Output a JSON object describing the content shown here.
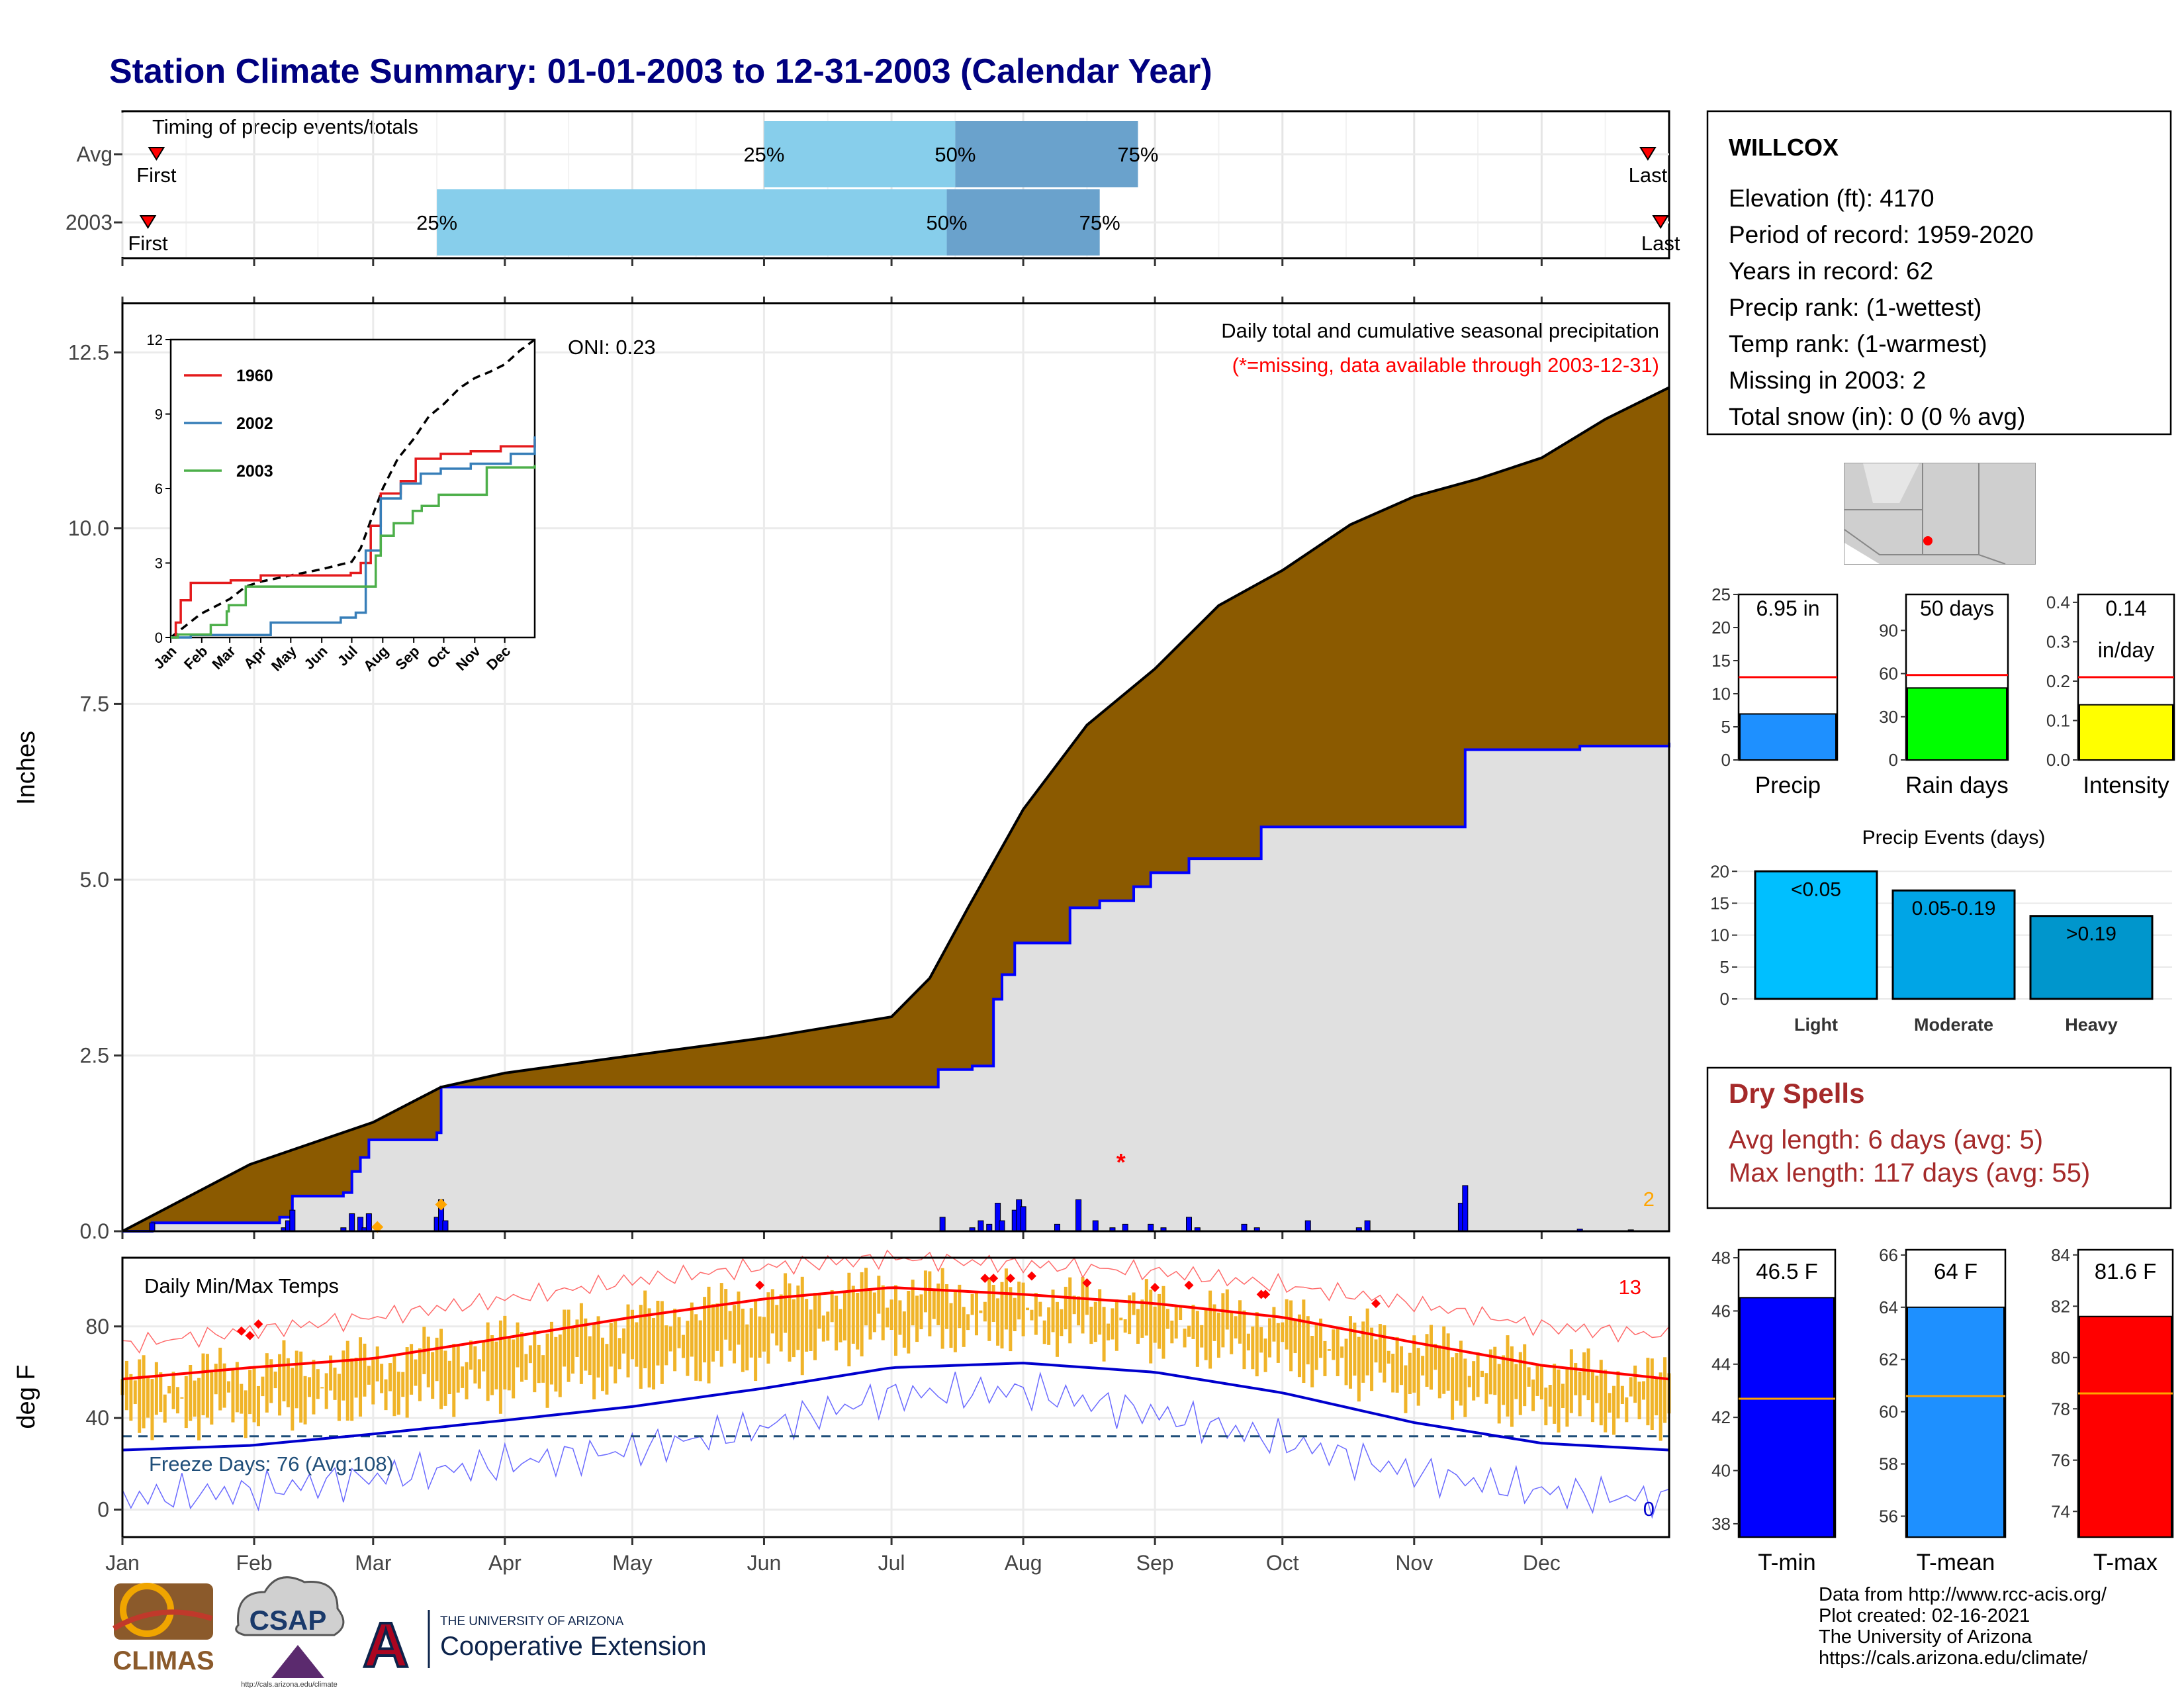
{
  "title": "Station Climate Summary: 01-01-2003 to 12-31-2003 (Calendar Year)",
  "months": [
    "Jan",
    "Feb",
    "Mar",
    "Apr",
    "May",
    "Jun",
    "Jul",
    "Aug",
    "Sep",
    "Oct",
    "Nov",
    "Dec"
  ],
  "colors": {
    "title": "#000080",
    "accent": "#8b5a00",
    "cum_line": "#0000ff",
    "q_light": "#87ceeb",
    "q_dark": "#6aa2cc",
    "temp_bar": "#f0b429",
    "tmax_mean": "#ff0000",
    "tmin_mean": "#0000cd",
    "dry": "#a52a2a",
    "gray_fill": "#e0e0e0"
  },
  "timing": {
    "title": "Timing of precip events/totals",
    "rows": [
      {
        "label": "Avg",
        "first_doy": 8,
        "p25_doy": 151,
        "p50_doy": 196,
        "p75_doy": 239,
        "last_doy": 359,
        "first_label": "First",
        "last_label": "Last",
        "p25_label": "25%",
        "p50_label": "50%",
        "p75_label": "75%"
      },
      {
        "label": "2003",
        "first_doy": 6,
        "p25_doy": 74,
        "p50_doy": 194,
        "p75_doy": 230,
        "last_doy": 362,
        "first_label": "First",
        "last_label": "Last",
        "p25_label": "25%",
        "p50_label": "50%",
        "p75_label": "75%"
      }
    ]
  },
  "precip_chart": {
    "ylabel": "Inches",
    "yticks": [
      0.0,
      2.5,
      5.0,
      7.5,
      10.0,
      12.5
    ],
    "ytick_labels": [
      "0.0",
      "2.5",
      "5.0",
      "7.5",
      "10.0",
      "12.5"
    ],
    "ylim": [
      0,
      13.2
    ],
    "caption": "Daily total and cumulative seasonal precipitation",
    "missing_note": "(*=missing, data available through 2003-12-31)",
    "oni": "ONI: 0.23",
    "missing_count": "2",
    "avg_cumulative": [
      [
        0,
        0
      ],
      [
        30,
        0.95
      ],
      [
        59,
        1.55
      ],
      [
        75,
        2.05
      ],
      [
        90,
        2.25
      ],
      [
        120,
        2.5
      ],
      [
        151,
        2.75
      ],
      [
        181,
        3.05
      ],
      [
        190,
        3.6
      ],
      [
        199,
        4.6
      ],
      [
        212,
        6.0
      ],
      [
        227,
        7.2
      ],
      [
        243,
        8.0
      ],
      [
        258,
        8.9
      ],
      [
        273,
        9.4
      ],
      [
        289,
        10.05
      ],
      [
        304,
        10.45
      ],
      [
        319,
        10.7
      ],
      [
        334,
        11.0
      ],
      [
        349,
        11.55
      ],
      [
        364,
        12.0
      ]
    ],
    "cumulative_2003": [
      [
        0,
        0
      ],
      [
        7,
        0.12
      ],
      [
        30,
        0.12
      ],
      [
        37,
        0.2
      ],
      [
        40,
        0.5
      ],
      [
        52,
        0.55
      ],
      [
        54,
        0.85
      ],
      [
        56,
        1.05
      ],
      [
        58,
        1.3
      ],
      [
        74,
        1.4
      ],
      [
        75,
        2.05
      ],
      [
        190,
        2.05
      ],
      [
        192,
        2.3
      ],
      [
        200,
        2.35
      ],
      [
        205,
        3.3
      ],
      [
        207,
        3.65
      ],
      [
        210,
        4.1
      ],
      [
        220,
        4.1
      ],
      [
        223,
        4.6
      ],
      [
        230,
        4.7
      ],
      [
        238,
        4.9
      ],
      [
        242,
        5.1
      ],
      [
        251,
        5.3
      ],
      [
        268,
        5.75
      ],
      [
        314,
        5.75
      ],
      [
        316,
        6.85
      ],
      [
        343,
        6.9
      ],
      [
        364,
        6.95
      ]
    ],
    "daily_bars": [
      [
        7,
        0.12
      ],
      [
        38,
        0.05
      ],
      [
        39,
        0.15
      ],
      [
        40,
        0.3
      ],
      [
        52,
        0.05
      ],
      [
        54,
        0.25
      ],
      [
        56,
        0.2
      ],
      [
        57,
        0.05
      ],
      [
        58,
        0.25
      ],
      [
        74,
        0.2
      ],
      [
        75,
        0.45
      ],
      [
        76,
        0.15
      ],
      [
        193,
        0.2
      ],
      [
        200,
        0.05
      ],
      [
        202,
        0.15
      ],
      [
        204,
        0.1
      ],
      [
        206,
        0.4
      ],
      [
        207,
        0.15
      ],
      [
        210,
        0.3
      ],
      [
        211,
        0.45
      ],
      [
        212,
        0.35
      ],
      [
        220,
        0.1
      ],
      [
        225,
        0.45
      ],
      [
        229,
        0.15
      ],
      [
        233,
        0.05
      ],
      [
        236,
        0.1
      ],
      [
        242,
        0.1
      ],
      [
        245,
        0.05
      ],
      [
        251,
        0.2
      ],
      [
        253,
        0.05
      ],
      [
        264,
        0.1
      ],
      [
        267,
        0.05
      ],
      [
        279,
        0.15
      ],
      [
        291,
        0.05
      ],
      [
        293,
        0.15
      ],
      [
        315,
        0.4
      ],
      [
        316,
        0.65
      ],
      [
        343,
        0.03
      ],
      [
        355,
        0.02
      ]
    ],
    "missing_markers": [
      [
        235,
        1.0
      ]
    ],
    "snow_markers": [
      [
        60,
        0.06
      ],
      [
        75,
        0.38
      ]
    ]
  },
  "inset": {
    "yticks": [
      0,
      3,
      6,
      9,
      12
    ],
    "months": [
      "Jan",
      "Feb",
      "Mar",
      "Apr",
      "May",
      "Jun",
      "Jul",
      "Aug",
      "Sep",
      "Oct",
      "Nov",
      "Dec"
    ],
    "series": [
      {
        "name": "1960",
        "color": "#e41a1c",
        "points": [
          [
            0,
            0
          ],
          [
            5,
            0.6
          ],
          [
            10,
            1.5
          ],
          [
            20,
            2.2
          ],
          [
            60,
            2.3
          ],
          [
            90,
            2.5
          ],
          [
            180,
            2.6
          ],
          [
            190,
            3.0
          ],
          [
            200,
            4.5
          ],
          [
            210,
            5.8
          ],
          [
            230,
            6.3
          ],
          [
            245,
            7.2
          ],
          [
            270,
            7.4
          ],
          [
            300,
            7.5
          ],
          [
            330,
            7.7
          ],
          [
            364,
            8.0
          ]
        ]
      },
      {
        "name": "2002",
        "color": "#377eb8",
        "points": [
          [
            0,
            0
          ],
          [
            20,
            0.1
          ],
          [
            100,
            0.6
          ],
          [
            170,
            0.8
          ],
          [
            185,
            1.0
          ],
          [
            195,
            3.5
          ],
          [
            210,
            5.6
          ],
          [
            230,
            6.2
          ],
          [
            250,
            6.6
          ],
          [
            270,
            6.8
          ],
          [
            300,
            7.0
          ],
          [
            340,
            7.4
          ],
          [
            364,
            8.1
          ]
        ]
      },
      {
        "name": "2003",
        "color": "#4daf4a",
        "points": [
          [
            0,
            0
          ],
          [
            7,
            0.12
          ],
          [
            40,
            0.5
          ],
          [
            56,
            1.05
          ],
          [
            58,
            1.3
          ],
          [
            75,
            2.05
          ],
          [
            190,
            2.05
          ],
          [
            205,
            3.3
          ],
          [
            210,
            4.1
          ],
          [
            223,
            4.6
          ],
          [
            242,
            5.1
          ],
          [
            251,
            5.3
          ],
          [
            268,
            5.75
          ],
          [
            314,
            5.75
          ],
          [
            316,
            6.85
          ],
          [
            364,
            6.95
          ]
        ]
      }
    ],
    "avg_points": [
      [
        0,
        0
      ],
      [
        30,
        0.95
      ],
      [
        59,
        1.55
      ],
      [
        75,
        2.05
      ],
      [
        90,
        2.25
      ],
      [
        120,
        2.5
      ],
      [
        151,
        2.75
      ],
      [
        181,
        3.05
      ],
      [
        190,
        3.6
      ],
      [
        199,
        4.6
      ],
      [
        212,
        6.0
      ],
      [
        227,
        7.2
      ],
      [
        243,
        8.0
      ],
      [
        258,
        8.9
      ],
      [
        273,
        9.4
      ],
      [
        289,
        10.05
      ],
      [
        304,
        10.45
      ],
      [
        319,
        10.7
      ],
      [
        334,
        11.0
      ],
      [
        349,
        11.55
      ],
      [
        364,
        12.0
      ]
    ]
  },
  "temp_chart": {
    "title": "Daily Min/Max Temps",
    "ylabel": "deg F",
    "yticks": [
      0,
      40,
      80
    ],
    "ylim": [
      -12,
      110
    ],
    "freeze_label": "Freeze Days: 76 (Avg:108)",
    "freeze_line": 32,
    "hot_count": "13",
    "cold_count": "0",
    "mean_tmax": [
      [
        0,
        57
      ],
      [
        30,
        62
      ],
      [
        59,
        66
      ],
      [
        90,
        75
      ],
      [
        120,
        84
      ],
      [
        151,
        92
      ],
      [
        181,
        97
      ],
      [
        212,
        94
      ],
      [
        243,
        90
      ],
      [
        273,
        84
      ],
      [
        304,
        73
      ],
      [
        334,
        63
      ],
      [
        364,
        57
      ]
    ],
    "mean_tmin": [
      [
        0,
        26
      ],
      [
        30,
        28
      ],
      [
        59,
        33
      ],
      [
        90,
        39
      ],
      [
        120,
        45
      ],
      [
        151,
        53
      ],
      [
        181,
        62
      ],
      [
        212,
        64
      ],
      [
        243,
        60
      ],
      [
        273,
        51
      ],
      [
        304,
        38
      ],
      [
        334,
        29
      ],
      [
        364,
        26
      ]
    ],
    "record_max": [
      [
        0,
        72
      ],
      [
        30,
        78
      ],
      [
        59,
        84
      ],
      [
        90,
        92
      ],
      [
        120,
        100
      ],
      [
        151,
        106
      ],
      [
        181,
        110
      ],
      [
        212,
        107
      ],
      [
        243,
        104
      ],
      [
        273,
        98
      ],
      [
        304,
        90
      ],
      [
        334,
        80
      ],
      [
        364,
        76
      ]
    ],
    "record_min": [
      [
        0,
        5
      ],
      [
        30,
        8
      ],
      [
        59,
        14
      ],
      [
        90,
        20
      ],
      [
        120,
        26
      ],
      [
        151,
        36
      ],
      [
        181,
        50
      ],
      [
        212,
        52
      ],
      [
        243,
        42
      ],
      [
        273,
        30
      ],
      [
        304,
        16
      ],
      [
        334,
        8
      ],
      [
        364,
        4
      ]
    ],
    "hot_markers": [
      [
        28,
        78
      ],
      [
        30,
        76
      ],
      [
        32,
        81
      ],
      [
        150,
        98
      ],
      [
        203,
        101
      ],
      [
        205,
        101
      ],
      [
        209,
        101
      ],
      [
        214,
        102
      ],
      [
        227,
        99
      ],
      [
        243,
        97
      ],
      [
        251,
        98
      ],
      [
        268,
        94
      ],
      [
        269,
        94
      ],
      [
        295,
        90
      ]
    ]
  },
  "station": {
    "name": "WILLCOX",
    "lines": [
      "Elevation (ft): 4170",
      "Period of record: 1959-2020",
      "Years in record: 62",
      "Precip rank:  (1-wettest)",
      "Temp rank:  (1-warmest)",
      "Missing in 2003: 2",
      "Total snow (in): 0 (0 % avg)"
    ]
  },
  "mini_bars": [
    {
      "label": "Precip",
      "value_label": "6.95 in",
      "value": 6.95,
      "avg": 12.5,
      "ymax": 25,
      "yticks": [
        0,
        5,
        10,
        15,
        20,
        25
      ],
      "ytick_labels": [
        "0",
        "5",
        "10",
        "15",
        "20",
        "25"
      ],
      "color": "#1e90ff"
    },
    {
      "label": "Rain days",
      "value_label": "50 days",
      "value": 50,
      "avg": 59,
      "ymax": 115,
      "yticks": [
        0,
        30,
        60,
        90
      ],
      "ytick_labels": [
        "0",
        "30",
        "60",
        "90"
      ],
      "color": "#00ff00"
    },
    {
      "label": "Intensity",
      "value_label": "0.14",
      "value_label2": "in/day",
      "value": 0.14,
      "avg": 0.21,
      "ymax": 0.42,
      "yticks": [
        0,
        0.1,
        0.2,
        0.3,
        0.4
      ],
      "ytick_labels": [
        "0.0",
        "0.1",
        "0.2",
        "0.3",
        "0.4"
      ],
      "color": "#ffff00"
    }
  ],
  "precip_events": {
    "title": "Precip Events (days)",
    "yticks": [
      0,
      5,
      10,
      15,
      20
    ],
    "categories": [
      "Light",
      "Moderate",
      "Heavy"
    ],
    "bar_labels": [
      "<0.05",
      "0.05-0.19",
      ">0.19"
    ],
    "values": [
      20,
      17,
      13
    ],
    "colors": [
      "#00bfff",
      "#00a5e6",
      "#0096cc"
    ]
  },
  "dry_spells": {
    "title": "Dry Spells",
    "avg_line": "Avg length: 6 days (avg: 5)",
    "max_line": "Max length: 117 days (avg: 55)"
  },
  "temp_bars": [
    {
      "label": "T-min",
      "value_label": "46.5 F",
      "value": 46.5,
      "avg": 42.7,
      "ymin": 37.5,
      "ymax": 48.3,
      "yticks": [
        38,
        40,
        42,
        44,
        46,
        48
      ],
      "color": "#0000ff"
    },
    {
      "label": "T-mean",
      "value_label": "64 F",
      "value": 64,
      "avg": 60.6,
      "ymin": 55.2,
      "ymax": 66.2,
      "yticks": [
        56,
        58,
        60,
        62,
        64,
        66
      ],
      "color": "#1e90ff"
    },
    {
      "label": "T-max",
      "value_label": "81.6 F",
      "value": 81.6,
      "avg": 78.6,
      "ymin": 73.0,
      "ymax": 84.2,
      "yticks": [
        74,
        76,
        78,
        80,
        82,
        84
      ],
      "color": "#ff0000"
    }
  ],
  "credits": [
    "Data from http://www.rcc-acis.org/",
    "Plot created: 02-16-2021",
    "The University of Arizona",
    "https://cals.arizona.edu/climate/"
  ],
  "logos": {
    "climas": "CLIMAS",
    "csap": "CSAP",
    "csap_url": "http://cals.arizona.edu/climate",
    "ua_top": "THE UNIVERSITY OF ARIZONA",
    "ua_bottom": "Cooperative Extension",
    "ua_letter": "A"
  }
}
